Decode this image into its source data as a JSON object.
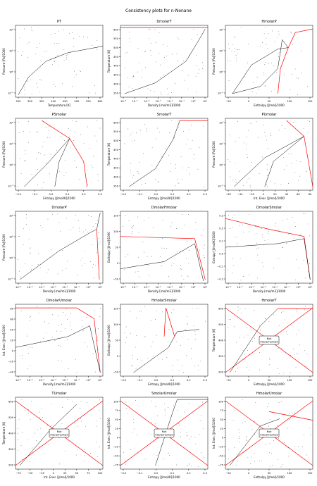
{
  "figure": {
    "suptitle": "Consistency plots for n-Nonane"
  },
  "colors": {
    "axis": "#000000",
    "saturation": "#ff0000",
    "grid_points": "#000000",
    "box_edge": "#000000"
  },
  "chart_data": [
    {
      "type": "scatter",
      "title": "PT",
      "xlabel": "Temperature [K]",
      "ylabel": "Pressure [Pa]/1000",
      "xticks": [
        "250",
        "300",
        "350",
        "400",
        "450",
        "500",
        "550",
        "600"
      ],
      "yticks": [
        "10⁻²",
        "10⁰",
        "10²",
        "10⁴"
      ]
    },
    {
      "type": "scatter",
      "title": "DmolarT",
      "xlabel": "Density [mol/m3]/1000",
      "ylabel": "Temperature [K]",
      "xticks": [
        "10⁻⁶",
        "10⁻⁵",
        "10⁻⁴",
        "10⁻³",
        "10⁻²",
        "10⁻¹",
        "10⁰",
        "10¹"
      ],
      "yticks": [
        "250",
        "300",
        "350",
        "400",
        "450",
        "500",
        "550",
        "600"
      ]
    },
    {
      "type": "scatter",
      "title": "HmolarP",
      "xlabel": "Enthalpy [J/mol]/1000",
      "ylabel": "Pressure [Pa]/1000",
      "xticks": [
        "−50",
        "0",
        "50",
        "100",
        "150"
      ],
      "yticks": [
        "10⁻²",
        "10⁰",
        "10²",
        "10⁴"
      ]
    },
    {
      "type": "scatter",
      "title": "PSmolar",
      "xlabel": "Entropy [J/mol/K]/1000",
      "ylabel": "Pressure [Pa]/1000",
      "xticks": [
        "−0.2",
        "−0.1",
        "0.0",
        "0.1",
        "0.2",
        "0.3"
      ],
      "yticks": [
        "10⁻²",
        "10⁰",
        "10²",
        "10⁴"
      ]
    },
    {
      "type": "scatter",
      "title": "SmolarT",
      "xlabel": "Entropy [J/mol/K]/1000",
      "ylabel": "Temperature [K]",
      "xticks": [
        "−0.2",
        "−0.1",
        "0.0",
        "0.1",
        "0.2",
        "0.3"
      ],
      "yticks": [
        "250",
        "300",
        "350",
        "400",
        "450",
        "500",
        "550",
        "600"
      ]
    },
    {
      "type": "scatter",
      "title": "PUmolar",
      "xlabel": "Int. Ener. [J/mol]/1000",
      "ylabel": "Pressure [Pa]/1000",
      "xticks": [
        "−60",
        "−40",
        "−20",
        "0",
        "20",
        "40",
        "60",
        "80"
      ],
      "yticks": [
        "10⁻²",
        "10⁰",
        "10²",
        "10⁴"
      ]
    },
    {
      "type": "scatter",
      "title": "DmolarP",
      "xlabel": "Density [mol/m3]/1000",
      "ylabel": "Pressure [Pa]/1000",
      "xticks": [
        "10⁻⁶",
        "10⁻⁵",
        "10⁻⁴",
        "10⁻³",
        "10⁻²",
        "10⁻¹",
        "10⁰",
        "10¹"
      ],
      "yticks": [
        "10⁻²",
        "10⁰",
        "10²",
        "10⁴"
      ]
    },
    {
      "type": "scatter",
      "title": "DmolarHmolar",
      "xlabel": "Density [mol/m3]/1000",
      "ylabel": "Enthalpy [J/mol]/1000",
      "xticks": [
        "10⁻⁶",
        "10⁻⁵",
        "10⁻⁴",
        "10⁻³",
        "10⁻²",
        "10⁻¹",
        "10⁰",
        "10¹"
      ],
      "yticks": [
        "−50",
        "0",
        "50",
        "100",
        "150"
      ]
    },
    {
      "type": "scatter",
      "title": "DmolarSmolar",
      "xlabel": "Density [mol/m3]/1000",
      "ylabel": "Entropy [J/mol/K]/1000",
      "xticks": [
        "10⁻⁶",
        "10⁻⁵",
        "10⁻⁴",
        "10⁻³",
        "10⁻²",
        "10⁻¹",
        "10⁰",
        "10¹"
      ],
      "yticks": [
        "−0.2",
        "−0.1",
        "0.0",
        "0.1",
        "0.2",
        "0.3"
      ]
    },
    {
      "type": "scatter",
      "title": "DmolarUmolar",
      "xlabel": "Density [mol/m3]/1000",
      "ylabel": "Int. Ener. [J/mol]/1000",
      "xticks": [
        "10⁻⁶",
        "10⁻⁵",
        "10⁻⁴",
        "10⁻³",
        "10⁻²",
        "10⁻¹",
        "10⁰",
        "10¹"
      ],
      "yticks": [
        "−40",
        "−20",
        "0",
        "20",
        "40",
        "60",
        "80"
      ]
    },
    {
      "type": "scatter",
      "title": "HmolarSmolar",
      "xlabel": "Entropy [J/mol/K]/1000",
      "ylabel": "Enthalpy [J/mol]/1000",
      "xticks": [
        "−0.2",
        "−0.1",
        "0.0",
        "0.1",
        "0.2",
        "0.3"
      ],
      "yticks": [
        "−50",
        "0",
        "50",
        "100",
        "150"
      ]
    },
    {
      "type": "scatter",
      "title": "HmolarT",
      "xlabel": "Enthalpy [J/mol]/1000",
      "ylabel": "Temperature [K]",
      "xticks": [
        "−50",
        "0",
        "50",
        "100",
        "150"
      ],
      "yticks": [
        "200",
        "300",
        "400",
        "500",
        "600"
      ],
      "annotation": "Not\nImplemented"
    },
    {
      "type": "scatter",
      "title": "TUmolar",
      "xlabel": "Int. Ener. [J/mol]/1000",
      "ylabel": "Temperature [K]",
      "xticks": [
        "−75",
        "−50",
        "−25",
        "0",
        "25",
        "50",
        "75",
        "100"
      ],
      "yticks": [
        "200",
        "300",
        "400",
        "500",
        "600"
      ],
      "annotation": "Not\nImplemented"
    },
    {
      "type": "scatter",
      "title": "SmolarUmolar",
      "xlabel": "Entropy [J/mol/K]/1000",
      "ylabel": "Int. Ener. [J/mol]/1000",
      "xticks": [
        "−0.2",
        "−0.1",
        "0.0",
        "0.1",
        "0.2",
        "0.3"
      ],
      "yticks": [
        "−75",
        "−50",
        "−25",
        "0",
        "25",
        "50",
        "75",
        "100"
      ],
      "annotation": "Not\nImplemented"
    },
    {
      "type": "scatter",
      "title": "HmolarUmolar",
      "xlabel": "Enthalpy [J/mol]/1000",
      "ylabel": "Int. Ener. [J/mol]/1000",
      "xticks": [
        "−50",
        "0",
        "50",
        "100",
        "150"
      ],
      "yticks": [
        "−75",
        "−50",
        "−25",
        "0",
        "25",
        "50",
        "75",
        "100"
      ],
      "annotation": "Not\nImplemented"
    }
  ]
}
